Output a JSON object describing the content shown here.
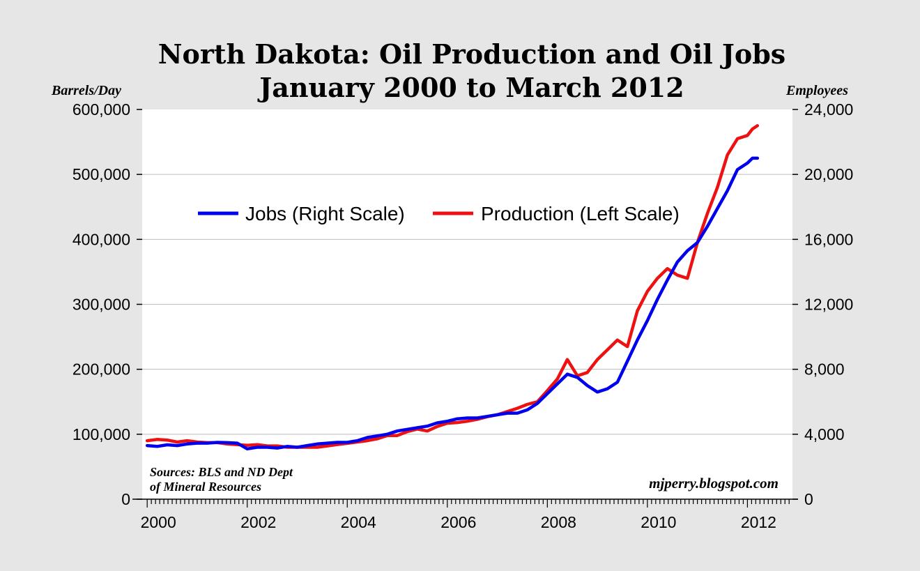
{
  "chart_data": {
    "type": "line",
    "title": "North Dakota: Oil Production and Oil Jobs",
    "subtitle": "January 2000 to March 2012",
    "y_left_label": "Barrels/Day",
    "y_right_label": "Employees",
    "y_left_lim": [
      0,
      600000
    ],
    "y_right_lim": [
      0,
      24000
    ],
    "y_left_ticks": [
      "0",
      "100,000",
      "200,000",
      "300,000",
      "400,000",
      "500,000",
      "600,000"
    ],
    "y_right_ticks": [
      "0",
      "4,000",
      "8,000",
      "12,000",
      "16,000",
      "20,000",
      "24,000"
    ],
    "x_ticks": [
      "2000",
      "2002",
      "2004",
      "2006",
      "2008",
      "2010",
      "2012"
    ],
    "x_lim": [
      1999.9,
      2012.9
    ],
    "grid": "horizontal",
    "legend_position": "upper-left",
    "series": [
      {
        "name": "Jobs (Right Scale)",
        "axis": "right",
        "color": "#0000ee",
        "x": [
          2000.0,
          2000.2,
          2000.4,
          2000.6,
          2000.8,
          2001.0,
          2001.2,
          2001.4,
          2001.6,
          2001.8,
          2002.0,
          2002.2,
          2002.4,
          2002.6,
          2002.8,
          2003.0,
          2003.2,
          2003.4,
          2003.6,
          2003.8,
          2004.0,
          2004.2,
          2004.4,
          2004.6,
          2004.8,
          2005.0,
          2005.2,
          2005.4,
          2005.6,
          2005.8,
          2006.0,
          2006.2,
          2006.4,
          2006.6,
          2006.8,
          2007.0,
          2007.2,
          2007.4,
          2007.6,
          2007.8,
          2008.0,
          2008.2,
          2008.4,
          2008.6,
          2008.8,
          2009.0,
          2009.2,
          2009.4,
          2009.6,
          2009.8,
          2010.0,
          2010.2,
          2010.4,
          2010.6,
          2010.8,
          2011.0,
          2011.2,
          2011.4,
          2011.6,
          2011.8,
          2012.0,
          2012.1,
          2012.2
        ],
        "values": [
          3300,
          3250,
          3350,
          3300,
          3400,
          3450,
          3450,
          3500,
          3480,
          3450,
          3100,
          3200,
          3200,
          3150,
          3250,
          3200,
          3300,
          3400,
          3450,
          3500,
          3500,
          3600,
          3800,
          3900,
          4000,
          4200,
          4300,
          4400,
          4500,
          4700,
          4800,
          4950,
          5000,
          5000,
          5100,
          5200,
          5300,
          5300,
          5500,
          5900,
          6500,
          7100,
          7700,
          7500,
          7000,
          6600,
          6800,
          7200,
          8500,
          9800,
          11000,
          12300,
          13500,
          14600,
          15300,
          15800,
          16800,
          17900,
          19000,
          20300,
          20700,
          21000,
          21000
        ]
      },
      {
        "name": "Production (Left Scale)",
        "axis": "left",
        "color": "#ee1111",
        "x": [
          2000.0,
          2000.2,
          2000.4,
          2000.6,
          2000.8,
          2001.0,
          2001.2,
          2001.4,
          2001.6,
          2001.8,
          2002.0,
          2002.2,
          2002.4,
          2002.6,
          2002.8,
          2003.0,
          2003.2,
          2003.4,
          2003.6,
          2003.8,
          2004.0,
          2004.2,
          2004.4,
          2004.6,
          2004.8,
          2005.0,
          2005.2,
          2005.4,
          2005.6,
          2005.8,
          2006.0,
          2006.2,
          2006.4,
          2006.6,
          2006.8,
          2007.0,
          2007.2,
          2007.4,
          2007.6,
          2007.8,
          2008.0,
          2008.2,
          2008.4,
          2008.6,
          2008.8,
          2009.0,
          2009.2,
          2009.4,
          2009.6,
          2009.8,
          2010.0,
          2010.2,
          2010.4,
          2010.6,
          2010.8,
          2011.0,
          2011.2,
          2011.4,
          2011.6,
          2011.8,
          2012.0,
          2012.1,
          2012.2
        ],
        "values": [
          90000,
          92000,
          91000,
          88000,
          90000,
          88000,
          87000,
          87000,
          85000,
          84000,
          83000,
          84000,
          82000,
          82000,
          80000,
          80000,
          80000,
          80000,
          82000,
          84000,
          86000,
          88000,
          90000,
          93000,
          98000,
          98000,
          104000,
          108000,
          105000,
          112000,
          117000,
          118000,
          120000,
          123000,
          127000,
          130000,
          135000,
          140000,
          146000,
          150000,
          167000,
          185000,
          215000,
          190000,
          195000,
          215000,
          230000,
          245000,
          235000,
          290000,
          320000,
          340000,
          355000,
          345000,
          340000,
          395000,
          440000,
          480000,
          530000,
          555000,
          560000,
          570000,
          575000
        ]
      }
    ]
  },
  "notes": {
    "sources_line1": "Sources: BLS and ND Dept",
    "sources_line2": "of Mineral Resources",
    "credit": "mjperry.blogspot.com"
  }
}
